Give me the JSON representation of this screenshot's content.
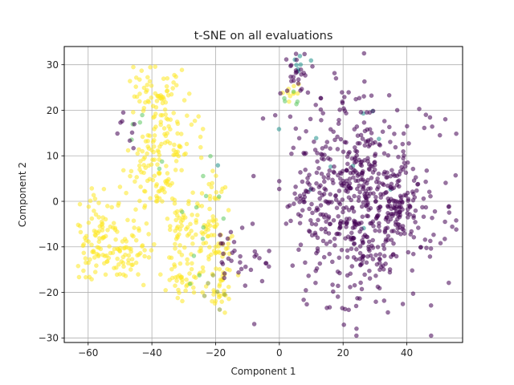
{
  "chart_data": {
    "type": "scatter",
    "title": "t-SNE on all evaluations",
    "xlabel": "Component 1",
    "ylabel": "Component 2",
    "xlim": [
      -67.5,
      57.5
    ],
    "ylim": [
      -31,
      34
    ],
    "xticks": [
      -60,
      -40,
      -20,
      0,
      20,
      40
    ],
    "yticks": [
      -30,
      -20,
      -10,
      0,
      10,
      20,
      30
    ],
    "xtick_labels": [
      "−60",
      "−40",
      "−20",
      "0",
      "20",
      "40"
    ],
    "ytick_labels": [
      "−30",
      "−20",
      "−10",
      "0",
      "10",
      "20",
      "30"
    ],
    "grid": true,
    "legend": false,
    "colormap": "viridis",
    "marker_alpha": 0.55,
    "colors": {
      "purple": "#440154",
      "teal": "#21918c",
      "green": "#5ec962",
      "yellow": "#fde725",
      "olive": "#8a9a2a"
    },
    "clusters": [
      {
        "cx": -39,
        "cy": 23,
        "sx": 4,
        "sy": 3.5,
        "n": 70,
        "color": "yellow"
      },
      {
        "cx": -34,
        "cy": 12,
        "sx": 5,
        "sy": 4,
        "n": 60,
        "color": "yellow"
      },
      {
        "cx": -42,
        "cy": 7,
        "sx": 4,
        "sy": 3,
        "n": 40,
        "color": "yellow"
      },
      {
        "cx": -37,
        "cy": 3,
        "sx": 3,
        "sy": 2.5,
        "n": 25,
        "color": "yellow"
      },
      {
        "cx": -57,
        "cy": -9,
        "sx": 3.5,
        "sy": 5,
        "n": 90,
        "color": "yellow"
      },
      {
        "cx": -46,
        "cy": -10,
        "sx": 4,
        "sy": 4,
        "n": 60,
        "color": "yellow"
      },
      {
        "cx": -30,
        "cy": -5,
        "sx": 3,
        "sy": 3,
        "n": 40,
        "color": "yellow"
      },
      {
        "cx": -30,
        "cy": -17,
        "sx": 3,
        "sy": 2.5,
        "n": 40,
        "color": "yellow"
      },
      {
        "cx": -21,
        "cy": -9,
        "sx": 3,
        "sy": 5,
        "n": 70,
        "color": "yellow"
      },
      {
        "cx": -18,
        "cy": -19,
        "sx": 2,
        "sy": 3,
        "n": 25,
        "color": "yellow"
      },
      {
        "cx": -20,
        "cy": 2,
        "sx": 3,
        "sy": 2,
        "n": 15,
        "color": "yellow"
      },
      {
        "cx": 3,
        "cy": 24,
        "sx": 1.5,
        "sy": 1.2,
        "n": 10,
        "color": "yellow"
      },
      {
        "cx": 26,
        "cy": 0,
        "sx": 12,
        "sy": 11,
        "n": 650,
        "color": "purple"
      },
      {
        "cx": 38,
        "cy": -2,
        "sx": 2,
        "sy": 1.5,
        "n": 40,
        "color": "purple"
      },
      {
        "cx": 5,
        "cy": 28,
        "sx": 2,
        "sy": 2,
        "n": 25,
        "color": "purple"
      },
      {
        "cx": -10,
        "cy": -13,
        "sx": 4,
        "sy": 2,
        "n": 20,
        "color": "purple"
      },
      {
        "cx": -48,
        "cy": 14,
        "sx": 2,
        "sy": 2,
        "n": 8,
        "color": "purple"
      },
      {
        "cx": -16,
        "cy": -11,
        "sx": 2,
        "sy": 3,
        "n": 12,
        "color": "purple"
      },
      {
        "cx": 5,
        "cy": 30,
        "sx": 1.2,
        "sy": 0.8,
        "n": 6,
        "color": "teal"
      },
      {
        "cx": 15,
        "cy": 10,
        "sx": 15,
        "sy": 10,
        "n": 12,
        "color": "teal"
      },
      {
        "cx": -25,
        "cy": -8,
        "sx": 6,
        "sy": 8,
        "n": 12,
        "color": "green"
      },
      {
        "cx": -45,
        "cy": 15,
        "sx": 4,
        "sy": 4,
        "n": 6,
        "color": "green"
      },
      {
        "cx": 3,
        "cy": 22,
        "sx": 2,
        "sy": 2,
        "n": 5,
        "color": "green"
      },
      {
        "cx": -20,
        "cy": -20,
        "sx": 2,
        "sy": 3,
        "n": 6,
        "color": "olive"
      }
    ],
    "random_seed": 7
  }
}
